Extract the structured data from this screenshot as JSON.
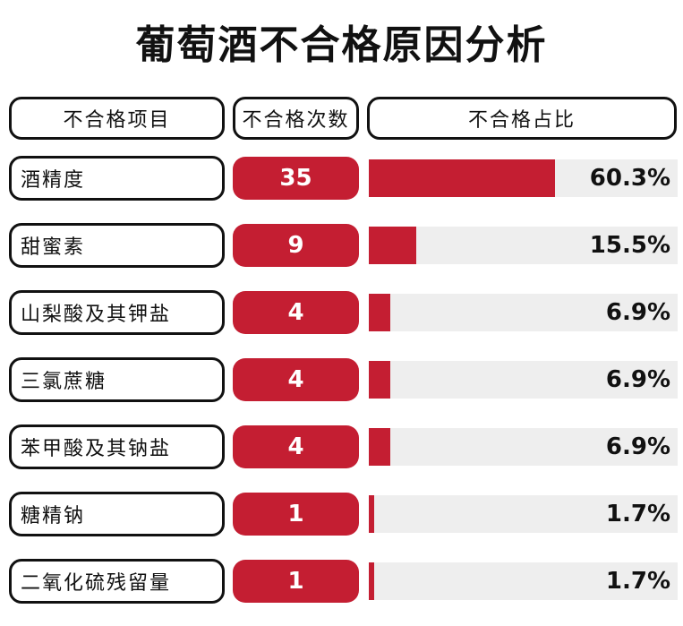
{
  "title": "葡萄酒不合格原因分析",
  "colors": {
    "accent": "#c41e32",
    "track": "#eeeeee"
  },
  "chart_data": {
    "type": "table",
    "headers": [
      "不合格项目",
      "不合格次数",
      "不合格占比"
    ],
    "rows": [
      {
        "item": "酒精度",
        "count": "35",
        "pct": "60.3%",
        "value": 60.3
      },
      {
        "item": "甜蜜素",
        "count": "9",
        "pct": "15.5%",
        "value": 15.5
      },
      {
        "item": "山梨酸及其钾盐",
        "count": "4",
        "pct": "6.9%",
        "value": 6.9
      },
      {
        "item": "三氯蔗糖",
        "count": "4",
        "pct": "6.9%",
        "value": 6.9
      },
      {
        "item": "苯甲酸及其钠盐",
        "count": "4",
        "pct": "6.9%",
        "value": 6.9
      },
      {
        "item": "糖精钠",
        "count": "1",
        "pct": "1.7%",
        "value": 1.7
      },
      {
        "item": "二氧化硫残留量",
        "count": "1",
        "pct": "1.7%",
        "value": 1.7
      }
    ]
  }
}
